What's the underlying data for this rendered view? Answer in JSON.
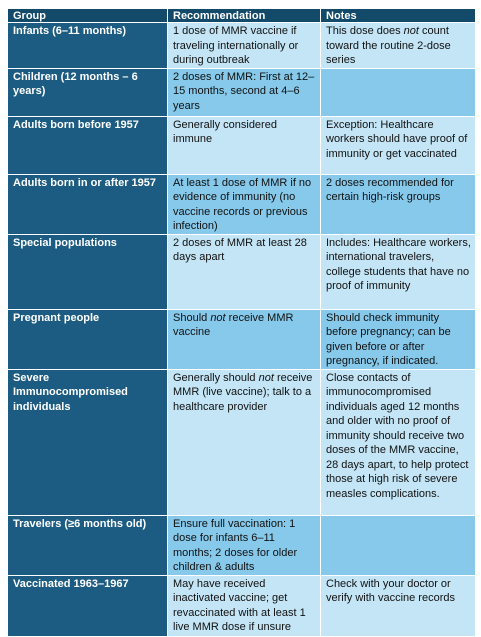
{
  "table": {
    "header": [
      "Group",
      "Recommendation",
      "Notes"
    ],
    "rows": [
      [
        [
          "Infants (6–11 months)"
        ],
        [
          "1 dose of MMR vaccine if traveling internationally or during outbreak"
        ],
        [
          "This dose does ",
          "not",
          " count toward the routine 2-dose series"
        ]
      ],
      [
        [
          "Children (12 months – 6 years)"
        ],
        [
          "2 doses of MMR: First at 12–15 months, second at 4–6 years"
        ],
        []
      ],
      [
        [
          "Adults born before 1957"
        ],
        [
          "Generally considered immune"
        ],
        [
          "Exception: Healthcare workers should have proof of immunity or get vaccinated"
        ]
      ],
      [
        [
          "Adults born in or after 1957"
        ],
        [
          "At least 1 dose of MMR if no evidence of immunity (no vaccine records or previous infection)"
        ],
        [
          "2 doses recommended for certain high-risk groups"
        ]
      ],
      [
        [
          "Special populations"
        ],
        [
          "2 doses of MMR at least 28 days apart"
        ],
        [
          "Includes: Healthcare workers, international travelers, college students that have no proof of immunity"
        ]
      ],
      [
        [
          "Pregnant people"
        ],
        [
          "Should ",
          "not",
          " receive MMR vaccine"
        ],
        [
          "Should check immunity before pregnancy; can be given before or after pregnancy, if indicated."
        ]
      ],
      [
        [
          "Severe Immunocompromised individuals"
        ],
        [
          "Generally should ",
          "not",
          " receive MMR (live vaccine); talk to a healthcare provider"
        ],
        [
          "Close contacts of immunocompromised individuals aged 12 months and older with no proof of immunity should receive two doses of the MMR vaccine, 28 days apart, to help protect those at high risk of severe measles complications."
        ]
      ],
      [
        [
          "Travelers (≥6 months old)"
        ],
        [
          "Ensure full vaccination: 1 dose for infants 6–11 months; 2 doses for older children & adults"
        ],
        []
      ],
      [
        [
          "Vaccinated 1963–1967"
        ],
        [
          "May have received inactivated vaccine; get revaccinated with at least 1 live MMR dose if unsure"
        ],
        [
          "Check with your doctor or verify with vaccine records"
        ]
      ]
    ]
  }
}
